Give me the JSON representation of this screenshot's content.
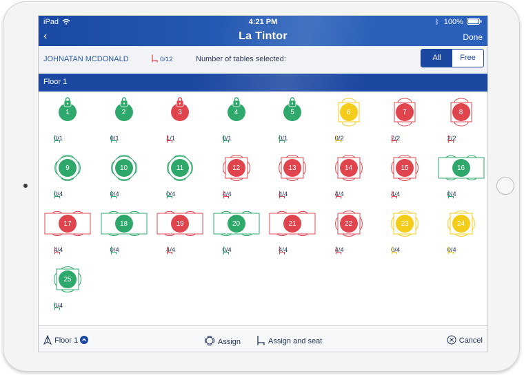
{
  "status": {
    "device": "iPad",
    "time": "4:21 PM",
    "battery": "100%"
  },
  "nav": {
    "back": "‹",
    "title": "La Tintor",
    "done": "Done"
  },
  "info": {
    "customer": "JOHNATAN MCDONALD",
    "seats": "0/12",
    "tables_selected_label": "Number of tables selected:"
  },
  "filter": {
    "all": "All",
    "free": "Free"
  },
  "floor": {
    "title": "Floor 1"
  },
  "colors": {
    "green": "#2ea86b",
    "red": "#e0444d",
    "yellow": "#f4cd1b",
    "navy": "#1d48a1"
  },
  "tables": [
    {
      "num": "1",
      "shape": "round",
      "color": "green",
      "seats": "0/1",
      "locked": true
    },
    {
      "num": "2",
      "shape": "round",
      "color": "green",
      "seats": "0/1",
      "locked": true
    },
    {
      "num": "3",
      "shape": "round",
      "color": "red",
      "seats": "1/1",
      "locked": true
    },
    {
      "num": "4",
      "shape": "round",
      "color": "green",
      "seats": "0/1",
      "locked": true
    },
    {
      "num": "5",
      "shape": "round",
      "color": "green",
      "seats": "0/1",
      "locked": true
    },
    {
      "num": "6",
      "shape": "square2",
      "color": "yellow",
      "seats": "0/2"
    },
    {
      "num": "7",
      "shape": "square2",
      "color": "red",
      "seats": "2/2"
    },
    {
      "num": "8",
      "shape": "square2",
      "color": "red",
      "seats": "2/2"
    },
    {
      "num": "9",
      "shape": "round4",
      "color": "green",
      "seats": "0/4"
    },
    {
      "num": "10",
      "shape": "round4",
      "color": "green",
      "seats": "0/4"
    },
    {
      "num": "11",
      "shape": "round4",
      "color": "green",
      "seats": "0/4"
    },
    {
      "num": "12",
      "shape": "square4",
      "color": "red",
      "seats": "4/4"
    },
    {
      "num": "13",
      "shape": "square4",
      "color": "red",
      "seats": "4/4"
    },
    {
      "num": "14",
      "shape": "square4",
      "color": "red",
      "seats": "4/4"
    },
    {
      "num": "15",
      "shape": "square4",
      "color": "red",
      "seats": "4/4"
    },
    {
      "num": "16",
      "shape": "rect4",
      "color": "green",
      "seats": "0/4"
    },
    {
      "num": "17",
      "shape": "rect4",
      "color": "red",
      "seats": "4/4"
    },
    {
      "num": "18",
      "shape": "rect4",
      "color": "green",
      "seats": "0/4"
    },
    {
      "num": "19",
      "shape": "rect4",
      "color": "red",
      "seats": "4/4"
    },
    {
      "num": "20",
      "shape": "rect4",
      "color": "green",
      "seats": "0/4"
    },
    {
      "num": "21",
      "shape": "rect4",
      "color": "red",
      "seats": "4/4"
    },
    {
      "num": "22",
      "shape": "square4",
      "color": "red",
      "seats": "4/4"
    },
    {
      "num": "23",
      "shape": "square4",
      "color": "yellow",
      "seats": "0/4"
    },
    {
      "num": "24",
      "shape": "square4",
      "color": "yellow",
      "seats": "0/4"
    },
    {
      "num": "25",
      "shape": "square4",
      "color": "green",
      "seats": "0/4"
    }
  ],
  "bottom": {
    "floor": "Floor 1",
    "assign": "Assign",
    "assign_seat": "Assign and seat",
    "cancel": "Cancel"
  }
}
